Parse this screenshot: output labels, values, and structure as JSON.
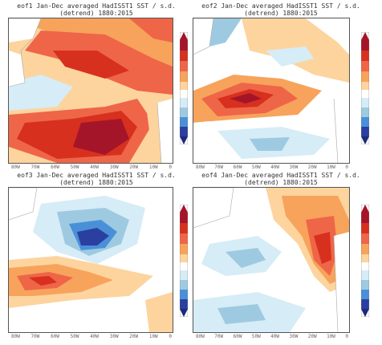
{
  "panels": [
    {
      "id": "eof1",
      "title_line1": "eof1 Jan-Dec averaged HadISST1 SST / s.d.",
      "title_line2": "(detrend) 1880:2015"
    },
    {
      "id": "eof2",
      "title_line1": "eof2 Jan-Dec averaged HadISST1 SST / s.d.",
      "title_line2": "(detrend) 1880:2015"
    },
    {
      "id": "eof3",
      "title_line1": "eof3 Jan-Dec averaged HadISST1 SST / s.d.",
      "title_line2": "(detrend) 1880:2015"
    },
    {
      "id": "eof4",
      "title_line1": "eof4 Jan-Dec averaged HadISST1 SST / s.d.",
      "title_line2": "(detrend) 1880:2015"
    }
  ],
  "longitude_labels": [
    "80W",
    "70W",
    "60W",
    "50W",
    "40W",
    "30W",
    "20W",
    "10W",
    "0"
  ],
  "colors": {
    "dark_red": "#a5152a",
    "red": "#d7301f",
    "orange_red": "#ef6548",
    "orange": "#f7a35c",
    "light_orange": "#fdd49e",
    "white": "#ffffff",
    "light_blue": "#d6ecf7",
    "blue": "#9ecae1",
    "mid_blue": "#4a90d9",
    "dark_blue": "#2a3f9f",
    "navy": "#1b2a7a"
  }
}
